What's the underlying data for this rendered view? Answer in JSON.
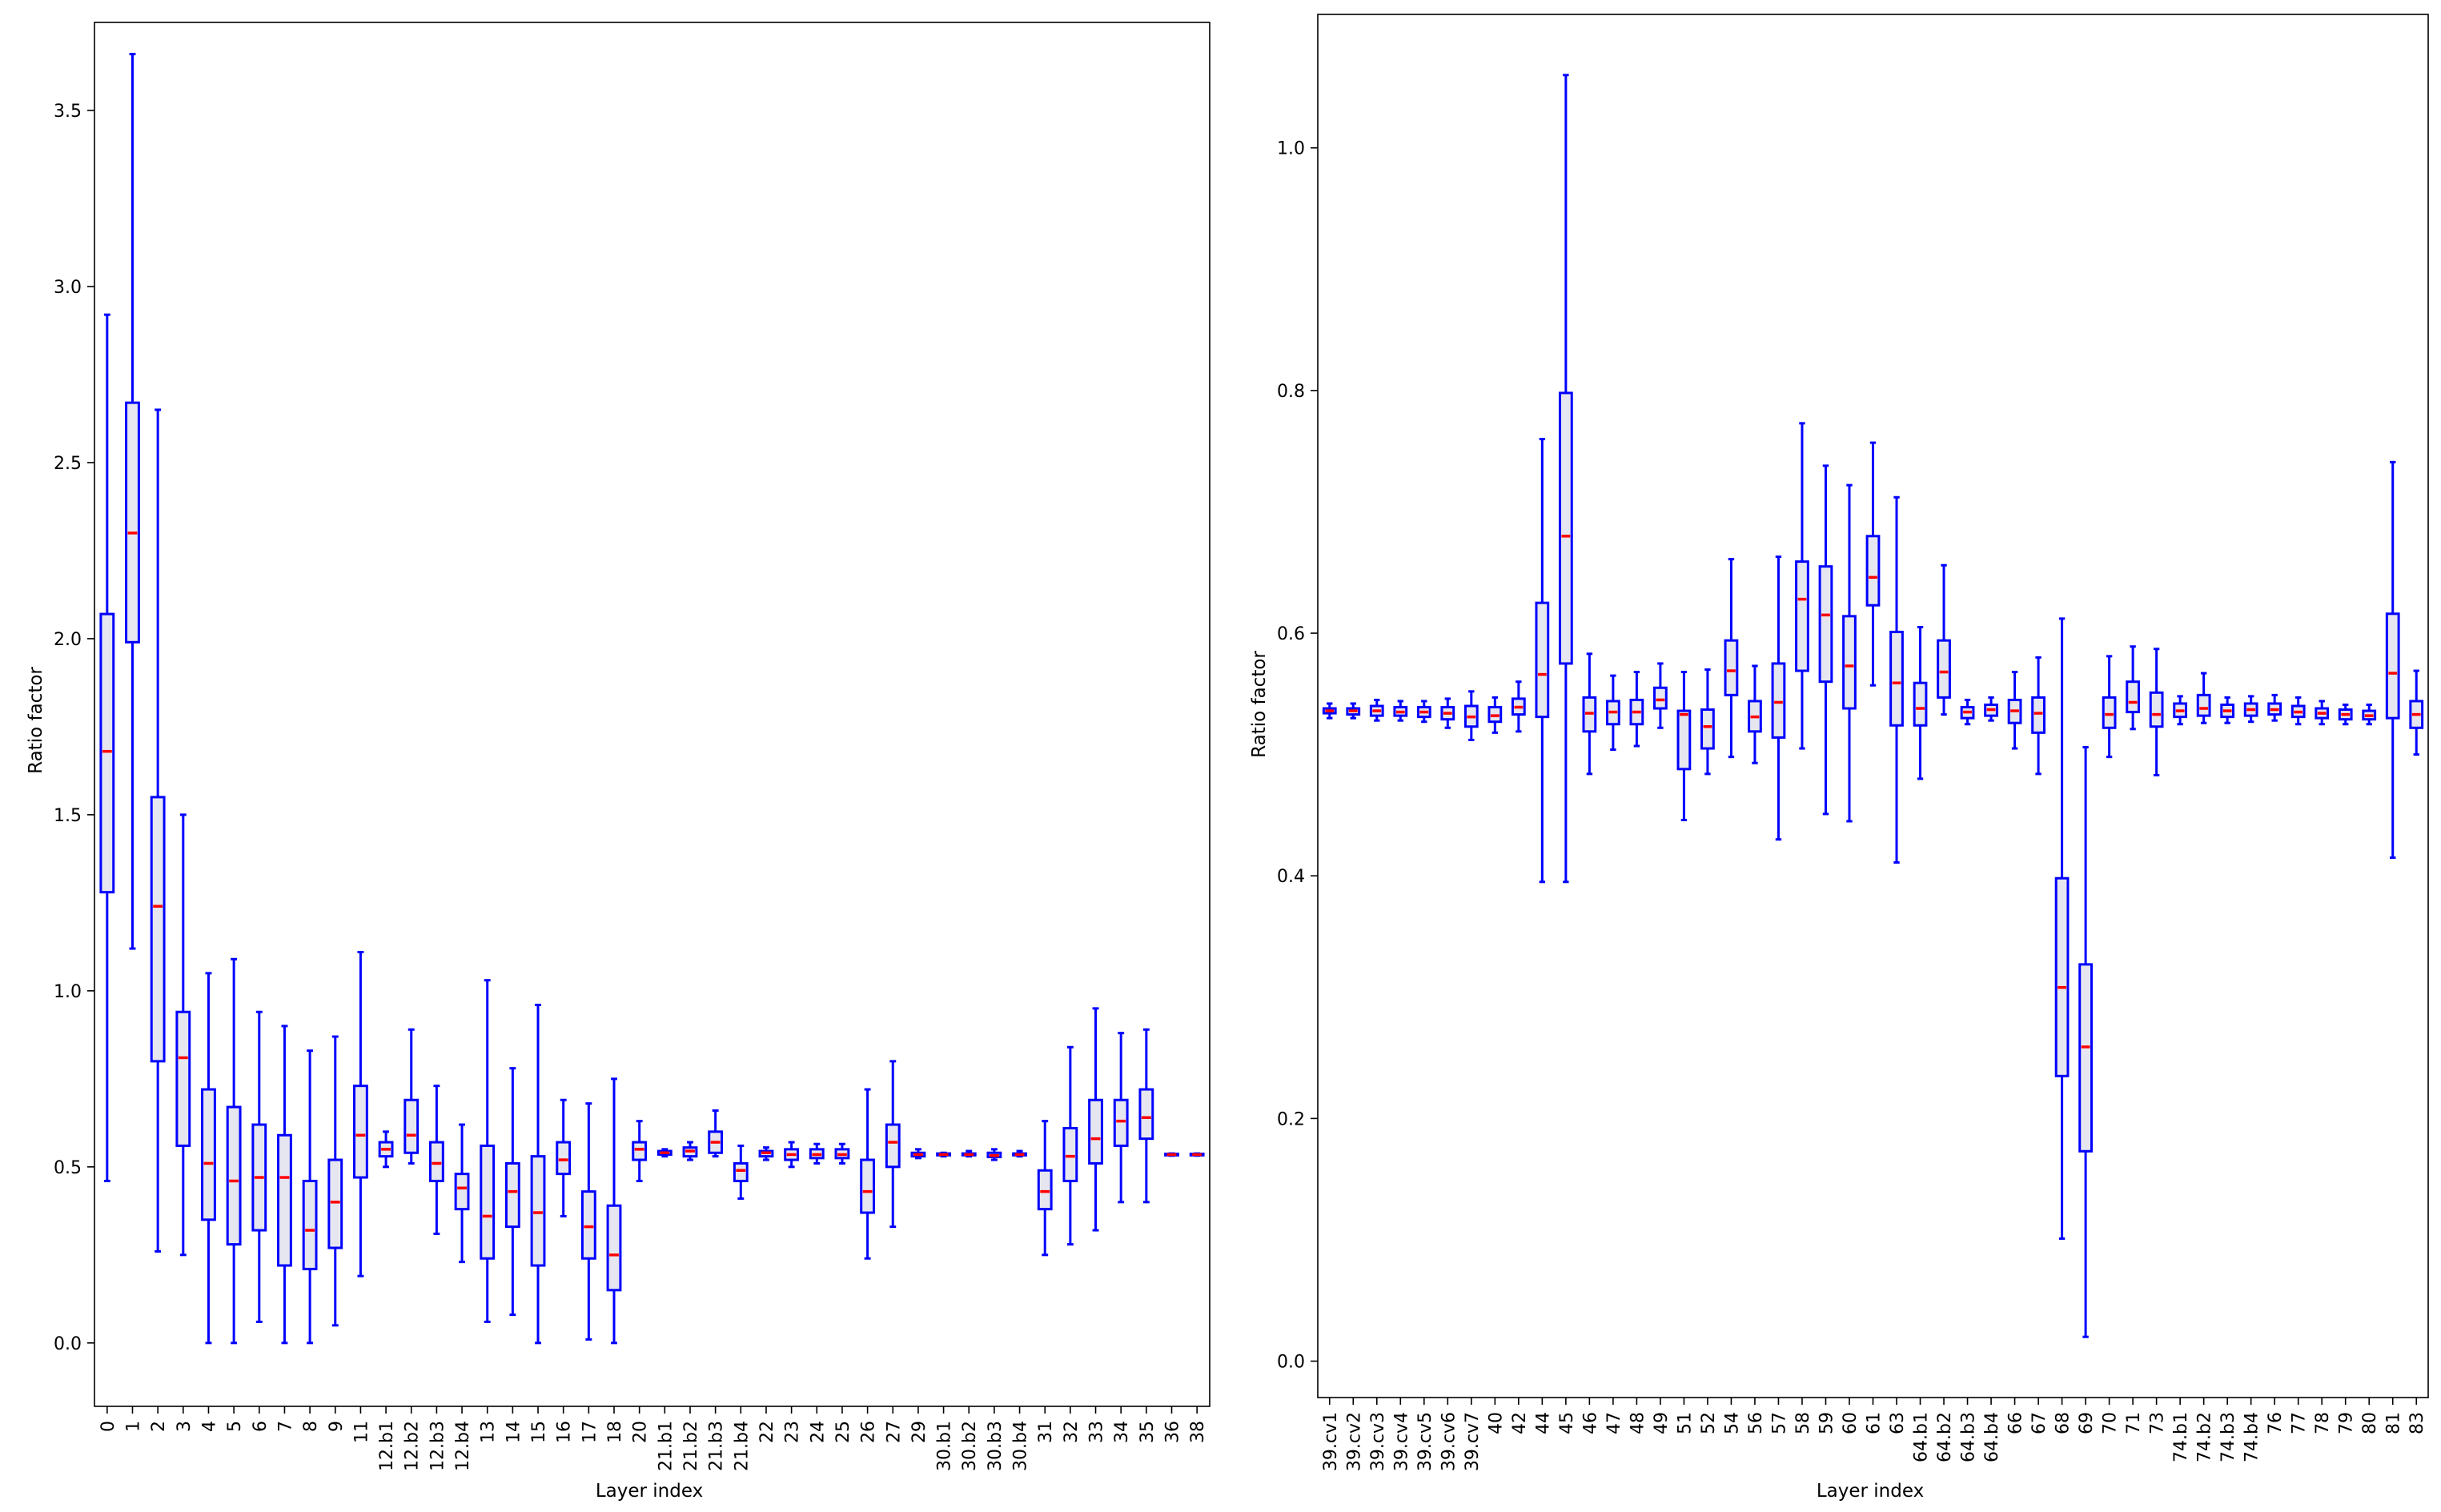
{
  "chart_data": [
    {
      "type": "box",
      "xlabel": "Layer index",
      "ylabel": "Ratio factor",
      "ylim": [
        -0.18,
        3.75
      ],
      "yticks": [
        0.0,
        0.5,
        1.0,
        1.5,
        2.0,
        2.5,
        3.0,
        3.5
      ],
      "grid": false,
      "categories": [
        "0",
        "1",
        "2",
        "3",
        "4",
        "5",
        "6",
        "7",
        "8",
        "9",
        "11",
        "12.b1",
        "12.b2",
        "12.b3",
        "12.b4",
        "13",
        "14",
        "15",
        "16",
        "17",
        "18",
        "20",
        "21.b1",
        "21.b2",
        "21.b3",
        "21.b4",
        "22",
        "23",
        "24",
        "25",
        "26",
        "27",
        "29",
        "30.b1",
        "30.b2",
        "30.b3",
        "30.b4",
        "31",
        "32",
        "33",
        "34",
        "35",
        "36",
        "38"
      ],
      "boxes": [
        {
          "whislo": 0.46,
          "q1": 1.28,
          "med": 1.68,
          "q3": 2.07,
          "whishi": 2.92
        },
        {
          "whislo": 1.12,
          "q1": 1.99,
          "med": 2.3,
          "q3": 2.67,
          "whishi": 3.66
        },
        {
          "whislo": 0.26,
          "q1": 0.8,
          "med": 1.24,
          "q3": 1.55,
          "whishi": 2.65
        },
        {
          "whislo": 0.25,
          "q1": 0.56,
          "med": 0.81,
          "q3": 0.94,
          "whishi": 1.5
        },
        {
          "whislo": 0.0,
          "q1": 0.35,
          "med": 0.51,
          "q3": 0.72,
          "whishi": 1.05
        },
        {
          "whislo": 0.0,
          "q1": 0.28,
          "med": 0.46,
          "q3": 0.67,
          "whishi": 1.09
        },
        {
          "whislo": 0.06,
          "q1": 0.32,
          "med": 0.47,
          "q3": 0.62,
          "whishi": 0.94
        },
        {
          "whislo": 0.0,
          "q1": 0.22,
          "med": 0.47,
          "q3": 0.59,
          "whishi": 0.9
        },
        {
          "whislo": 0.0,
          "q1": 0.21,
          "med": 0.32,
          "q3": 0.46,
          "whishi": 0.83
        },
        {
          "whislo": 0.05,
          "q1": 0.27,
          "med": 0.4,
          "q3": 0.52,
          "whishi": 0.87
        },
        {
          "whislo": 0.19,
          "q1": 0.47,
          "med": 0.59,
          "q3": 0.73,
          "whishi": 1.11
        },
        {
          "whislo": 0.5,
          "q1": 0.53,
          "med": 0.55,
          "q3": 0.57,
          "whishi": 0.6
        },
        {
          "whislo": 0.51,
          "q1": 0.54,
          "med": 0.59,
          "q3": 0.69,
          "whishi": 0.89
        },
        {
          "whislo": 0.31,
          "q1": 0.46,
          "med": 0.51,
          "q3": 0.57,
          "whishi": 0.73
        },
        {
          "whislo": 0.23,
          "q1": 0.38,
          "med": 0.44,
          "q3": 0.48,
          "whishi": 0.62
        },
        {
          "whislo": 0.06,
          "q1": 0.24,
          "med": 0.36,
          "q3": 0.56,
          "whishi": 1.03
        },
        {
          "whislo": 0.08,
          "q1": 0.33,
          "med": 0.43,
          "q3": 0.51,
          "whishi": 0.78
        },
        {
          "whislo": 0.0,
          "q1": 0.22,
          "med": 0.37,
          "q3": 0.53,
          "whishi": 0.96
        },
        {
          "whislo": 0.36,
          "q1": 0.48,
          "med": 0.52,
          "q3": 0.57,
          "whishi": 0.69
        },
        {
          "whislo": 0.01,
          "q1": 0.24,
          "med": 0.33,
          "q3": 0.43,
          "whishi": 0.68
        },
        {
          "whislo": 0.0,
          "q1": 0.15,
          "med": 0.25,
          "q3": 0.39,
          "whishi": 0.75
        },
        {
          "whislo": 0.46,
          "q1": 0.52,
          "med": 0.55,
          "q3": 0.57,
          "whishi": 0.63
        },
        {
          "whislo": 0.53,
          "q1": 0.535,
          "med": 0.54,
          "q3": 0.545,
          "whishi": 0.55
        },
        {
          "whislo": 0.52,
          "q1": 0.53,
          "med": 0.545,
          "q3": 0.555,
          "whishi": 0.57
        },
        {
          "whislo": 0.53,
          "q1": 0.54,
          "med": 0.57,
          "q3": 0.6,
          "whishi": 0.66
        },
        {
          "whislo": 0.41,
          "q1": 0.46,
          "med": 0.49,
          "q3": 0.51,
          "whishi": 0.56
        },
        {
          "whislo": 0.52,
          "q1": 0.53,
          "med": 0.54,
          "q3": 0.545,
          "whishi": 0.555
        },
        {
          "whislo": 0.5,
          "q1": 0.52,
          "med": 0.535,
          "q3": 0.55,
          "whishi": 0.57
        },
        {
          "whislo": 0.51,
          "q1": 0.525,
          "med": 0.535,
          "q3": 0.55,
          "whishi": 0.565
        },
        {
          "whislo": 0.51,
          "q1": 0.525,
          "med": 0.535,
          "q3": 0.55,
          "whishi": 0.565
        },
        {
          "whislo": 0.24,
          "q1": 0.37,
          "med": 0.43,
          "q3": 0.52,
          "whishi": 0.72
        },
        {
          "whislo": 0.33,
          "q1": 0.5,
          "med": 0.57,
          "q3": 0.62,
          "whishi": 0.8
        },
        {
          "whislo": 0.525,
          "q1": 0.53,
          "med": 0.535,
          "q3": 0.54,
          "whishi": 0.55
        },
        {
          "whislo": 0.53,
          "q1": 0.533,
          "med": 0.535,
          "q3": 0.538,
          "whishi": 0.54
        },
        {
          "whislo": 0.53,
          "q1": 0.533,
          "med": 0.535,
          "q3": 0.538,
          "whishi": 0.545
        },
        {
          "whislo": 0.52,
          "q1": 0.528,
          "med": 0.532,
          "q3": 0.54,
          "whishi": 0.55
        },
        {
          "whislo": 0.53,
          "q1": 0.533,
          "med": 0.535,
          "q3": 0.538,
          "whishi": 0.545
        },
        {
          "whislo": 0.25,
          "q1": 0.38,
          "med": 0.43,
          "q3": 0.49,
          "whishi": 0.63
        },
        {
          "whislo": 0.28,
          "q1": 0.46,
          "med": 0.53,
          "q3": 0.61,
          "whishi": 0.84
        },
        {
          "whislo": 0.32,
          "q1": 0.51,
          "med": 0.58,
          "q3": 0.69,
          "whishi": 0.95
        },
        {
          "whislo": 0.4,
          "q1": 0.56,
          "med": 0.63,
          "q3": 0.69,
          "whishi": 0.88
        },
        {
          "whislo": 0.4,
          "q1": 0.58,
          "med": 0.64,
          "q3": 0.72,
          "whishi": 0.89
        },
        {
          "whislo": 0.532,
          "q1": 0.533,
          "med": 0.535,
          "q3": 0.537,
          "whishi": 0.538
        },
        {
          "whislo": 0.532,
          "q1": 0.533,
          "med": 0.535,
          "q3": 0.537,
          "whishi": 0.538
        }
      ]
    },
    {
      "type": "box",
      "xlabel": "Layer index",
      "ylabel": "Ratio factor",
      "ylim": [
        -0.03,
        1.11
      ],
      "yticks": [
        0.0,
        0.2,
        0.4,
        0.6,
        0.8,
        1.0
      ],
      "grid": false,
      "categories": [
        "39.cv1",
        "39.cv2",
        "39.cv3",
        "39.cv4",
        "39.cv5",
        "39.cv6",
        "39.cv7",
        "40",
        "42",
        "44",
        "45",
        "46",
        "47",
        "48",
        "49",
        "51",
        "52",
        "54",
        "56",
        "57",
        "58",
        "59",
        "60",
        "61",
        "63",
        "64.b1",
        "64.b2",
        "64.b3",
        "64.b4",
        "66",
        "67",
        "68",
        "69",
        "70",
        "71",
        "73",
        "74.b1",
        "74.b2",
        "74.b3",
        "74.b4",
        "76",
        "77",
        "78",
        "79",
        "80",
        "81",
        "83"
      ],
      "boxes": [
        {
          "whislo": 0.53,
          "q1": 0.534,
          "med": 0.536,
          "q3": 0.538,
          "whishi": 0.542
        },
        {
          "whislo": 0.53,
          "q1": 0.533,
          "med": 0.536,
          "q3": 0.538,
          "whishi": 0.542
        },
        {
          "whislo": 0.528,
          "q1": 0.532,
          "med": 0.536,
          "q3": 0.54,
          "whishi": 0.545
        },
        {
          "whislo": 0.528,
          "q1": 0.532,
          "med": 0.535,
          "q3": 0.539,
          "whishi": 0.544
        },
        {
          "whislo": 0.527,
          "q1": 0.531,
          "med": 0.535,
          "q3": 0.539,
          "whishi": 0.544
        },
        {
          "whislo": 0.522,
          "q1": 0.529,
          "med": 0.534,
          "q3": 0.539,
          "whishi": 0.546
        },
        {
          "whislo": 0.512,
          "q1": 0.523,
          "med": 0.531,
          "q3": 0.54,
          "whishi": 0.552
        },
        {
          "whislo": 0.518,
          "q1": 0.527,
          "med": 0.532,
          "q3": 0.539,
          "whishi": 0.547
        },
        {
          "whislo": 0.519,
          "q1": 0.533,
          "med": 0.539,
          "q3": 0.546,
          "whishi": 0.56
        },
        {
          "whislo": 0.395,
          "q1": 0.531,
          "med": 0.566,
          "q3": 0.625,
          "whishi": 0.76
        },
        {
          "whislo": 0.395,
          "q1": 0.575,
          "med": 0.68,
          "q3": 0.798,
          "whishi": 1.06
        },
        {
          "whislo": 0.484,
          "q1": 0.519,
          "med": 0.534,
          "q3": 0.547,
          "whishi": 0.583
        },
        {
          "whislo": 0.504,
          "q1": 0.525,
          "med": 0.535,
          "q3": 0.544,
          "whishi": 0.565
        },
        {
          "whislo": 0.507,
          "q1": 0.525,
          "med": 0.535,
          "q3": 0.545,
          "whishi": 0.568
        },
        {
          "whislo": 0.522,
          "q1": 0.538,
          "med": 0.545,
          "q3": 0.555,
          "whishi": 0.575
        },
        {
          "whislo": 0.446,
          "q1": 0.488,
          "med": 0.533,
          "q3": 0.536,
          "whishi": 0.568
        },
        {
          "whislo": 0.484,
          "q1": 0.505,
          "med": 0.523,
          "q3": 0.537,
          "whishi": 0.57
        },
        {
          "whislo": 0.498,
          "q1": 0.549,
          "med": 0.569,
          "q3": 0.594,
          "whishi": 0.661
        },
        {
          "whislo": 0.493,
          "q1": 0.519,
          "med": 0.531,
          "q3": 0.544,
          "whishi": 0.573
        },
        {
          "whislo": 0.43,
          "q1": 0.514,
          "med": 0.543,
          "q3": 0.575,
          "whishi": 0.663
        },
        {
          "whislo": 0.505,
          "q1": 0.569,
          "med": 0.628,
          "q3": 0.659,
          "whishi": 0.773
        },
        {
          "whislo": 0.451,
          "q1": 0.56,
          "med": 0.615,
          "q3": 0.655,
          "whishi": 0.738
        },
        {
          "whislo": 0.445,
          "q1": 0.538,
          "med": 0.573,
          "q3": 0.614,
          "whishi": 0.722
        },
        {
          "whislo": 0.557,
          "q1": 0.623,
          "med": 0.646,
          "q3": 0.68,
          "whishi": 0.757
        },
        {
          "whislo": 0.411,
          "q1": 0.524,
          "med": 0.559,
          "q3": 0.601,
          "whishi": 0.712
        },
        {
          "whislo": 0.48,
          "q1": 0.524,
          "med": 0.538,
          "q3": 0.559,
          "whishi": 0.605
        },
        {
          "whislo": 0.533,
          "q1": 0.547,
          "med": 0.568,
          "q3": 0.594,
          "whishi": 0.656
        },
        {
          "whislo": 0.525,
          "q1": 0.53,
          "med": 0.535,
          "q3": 0.539,
          "whishi": 0.545
        },
        {
          "whislo": 0.528,
          "q1": 0.532,
          "med": 0.537,
          "q3": 0.541,
          "whishi": 0.547
        },
        {
          "whislo": 0.505,
          "q1": 0.526,
          "med": 0.536,
          "q3": 0.545,
          "whishi": 0.568
        },
        {
          "whislo": 0.484,
          "q1": 0.518,
          "med": 0.534,
          "q3": 0.547,
          "whishi": 0.58
        },
        {
          "whislo": 0.101,
          "q1": 0.235,
          "med": 0.308,
          "q3": 0.398,
          "whishi": 0.612
        },
        {
          "whislo": 0.02,
          "q1": 0.173,
          "med": 0.259,
          "q3": 0.327,
          "whishi": 0.506
        },
        {
          "whislo": 0.498,
          "q1": 0.522,
          "med": 0.533,
          "q3": 0.547,
          "whishi": 0.581
        },
        {
          "whislo": 0.521,
          "q1": 0.535,
          "med": 0.543,
          "q3": 0.56,
          "whishi": 0.589
        },
        {
          "whislo": 0.483,
          "q1": 0.523,
          "med": 0.533,
          "q3": 0.551,
          "whishi": 0.587
        },
        {
          "whislo": 0.525,
          "q1": 0.531,
          "med": 0.536,
          "q3": 0.542,
          "whishi": 0.548
        },
        {
          "whislo": 0.526,
          "q1": 0.532,
          "med": 0.538,
          "q3": 0.549,
          "whishi": 0.567
        },
        {
          "whislo": 0.526,
          "q1": 0.531,
          "med": 0.536,
          "q3": 0.541,
          "whishi": 0.547
        },
        {
          "whislo": 0.527,
          "q1": 0.532,
          "med": 0.537,
          "q3": 0.542,
          "whishi": 0.548
        },
        {
          "whislo": 0.528,
          "q1": 0.533,
          "med": 0.537,
          "q3": 0.542,
          "whishi": 0.549
        },
        {
          "whislo": 0.525,
          "q1": 0.531,
          "med": 0.535,
          "q3": 0.54,
          "whishi": 0.547
        },
        {
          "whislo": 0.525,
          "q1": 0.53,
          "med": 0.534,
          "q3": 0.538,
          "whishi": 0.544
        },
        {
          "whislo": 0.525,
          "q1": 0.529,
          "med": 0.533,
          "q3": 0.537,
          "whishi": 0.541
        },
        {
          "whislo": 0.525,
          "q1": 0.529,
          "med": 0.532,
          "q3": 0.536,
          "whishi": 0.541
        },
        {
          "whislo": 0.415,
          "q1": 0.53,
          "med": 0.567,
          "q3": 0.616,
          "whishi": 0.741
        },
        {
          "whislo": 0.5,
          "q1": 0.522,
          "med": 0.533,
          "q3": 0.544,
          "whishi": 0.569
        }
      ]
    }
  ],
  "style": {
    "box_edge": "#0000ff",
    "box_fill": "#e6e6f0",
    "median": "#ff0000",
    "axes": "#000000"
  }
}
